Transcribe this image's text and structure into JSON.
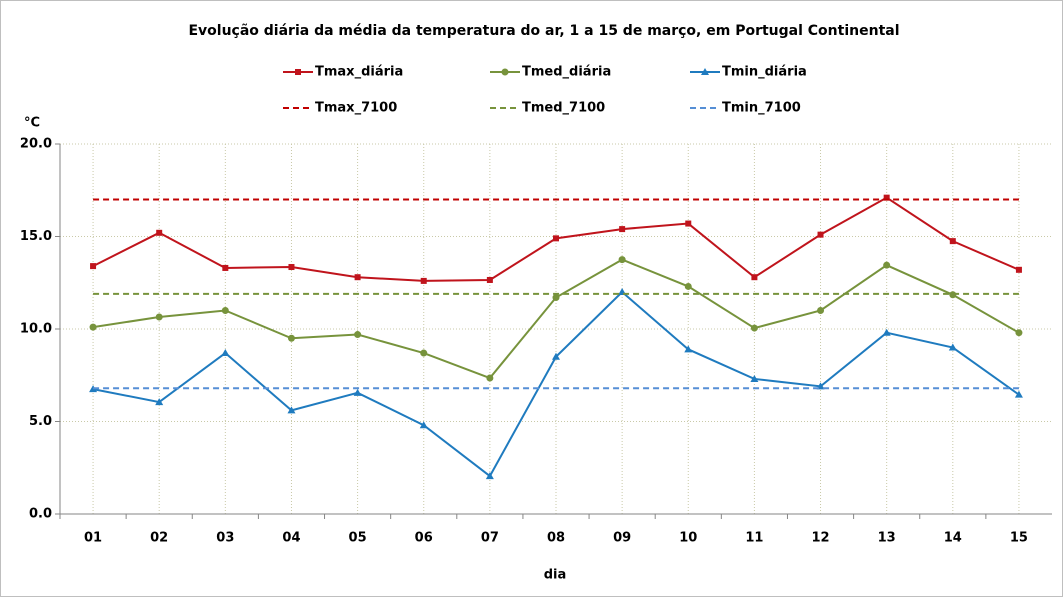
{
  "chart_data": {
    "type": "line",
    "title": "Evolução diária da média da temperatura do ar, 1 a 15 de março, em Portugal Continental",
    "y_axis_label": "°C",
    "x_axis_label": "dia",
    "categories": [
      "01",
      "02",
      "03",
      "04",
      "05",
      "06",
      "07",
      "08",
      "09",
      "10",
      "11",
      "12",
      "13",
      "14",
      "15"
    ],
    "ylim": [
      0,
      20
    ],
    "yticks": [
      {
        "value": 0,
        "label": "0.0"
      },
      {
        "value": 5,
        "label": "5.0"
      },
      {
        "value": 10,
        "label": "10.0"
      },
      {
        "value": 15,
        "label": "15.0"
      },
      {
        "value": 20,
        "label": "20.0"
      }
    ],
    "grid": true,
    "legend": "top",
    "series": [
      {
        "name": "Tmax_diária",
        "color": "#c0141c",
        "marker": "square",
        "dashed": false,
        "values": [
          13.4,
          15.2,
          13.3,
          13.35,
          12.8,
          12.6,
          12.65,
          14.9,
          15.4,
          15.7,
          12.8,
          15.1,
          17.1,
          14.75,
          13.2
        ]
      },
      {
        "name": "Tmed_diária",
        "color": "#77933c",
        "marker": "circle",
        "dashed": false,
        "values": [
          10.1,
          10.65,
          11.0,
          9.5,
          9.7,
          8.7,
          7.35,
          11.7,
          13.75,
          12.3,
          10.05,
          11.0,
          13.45,
          11.85,
          9.8
        ]
      },
      {
        "name": "Tmin_diária",
        "color": "#1f7bbf",
        "marker": "triangle",
        "dashed": false,
        "values": [
          6.75,
          6.05,
          8.7,
          5.6,
          6.55,
          4.8,
          2.05,
          8.5,
          12.0,
          8.9,
          7.3,
          6.9,
          9.8,
          9.0,
          6.45
        ]
      },
      {
        "name": "Tmax_7100",
        "color": "#c00000",
        "marker": "none",
        "dashed": true,
        "values": [
          17.0,
          17.0,
          17.0,
          17.0,
          17.0,
          17.0,
          17.0,
          17.0,
          17.0,
          17.0,
          17.0,
          17.0,
          17.0,
          17.0,
          17.0
        ]
      },
      {
        "name": "Tmed_7100",
        "color": "#77933c",
        "marker": "none",
        "dashed": true,
        "values": [
          11.9,
          11.9,
          11.9,
          11.9,
          11.9,
          11.9,
          11.9,
          11.9,
          11.9,
          11.9,
          11.9,
          11.9,
          11.9,
          11.9,
          11.9
        ]
      },
      {
        "name": "Tmin_7100",
        "color": "#558ed5",
        "marker": "none",
        "dashed": true,
        "values": [
          6.8,
          6.8,
          6.8,
          6.8,
          6.8,
          6.8,
          6.8,
          6.8,
          6.8,
          6.8,
          6.8,
          6.8,
          6.8,
          6.8,
          6.8
        ]
      }
    ]
  }
}
